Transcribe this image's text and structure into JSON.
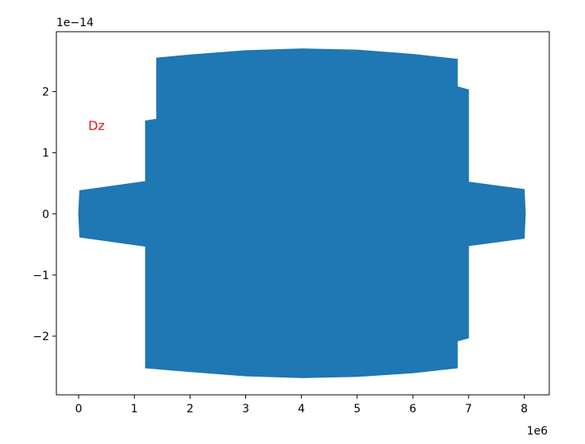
{
  "chart_data": {
    "type": "area",
    "title": "",
    "xlabel": "",
    "ylabel": "",
    "x_offset_label": "1e6",
    "y_offset_label": "1e−14",
    "xlim": [
      -0.4,
      8.45
    ],
    "ylim": [
      -2.96,
      2.98
    ],
    "xticks": [
      0,
      1,
      2,
      3,
      4,
      5,
      6,
      7,
      8
    ],
    "xtick_labels": [
      "0",
      "1",
      "2",
      "3",
      "4",
      "5",
      "6",
      "7",
      "8"
    ],
    "yticks": [
      -2,
      -1,
      0,
      1,
      2
    ],
    "ytick_labels": [
      "−2",
      "−1",
      "0",
      "1",
      "2"
    ],
    "grid": false,
    "annotation": {
      "text": "Dz",
      "x": 0.32,
      "y": 1.45,
      "color": "#e8161b"
    },
    "series": [
      {
        "color": "#1f77b4",
        "upper_envelope": [
          [
            0.0,
            0.0
          ],
          [
            0.02,
            0.38
          ],
          [
            1.2,
            0.53
          ],
          [
            1.2,
            1.52
          ],
          [
            1.4,
            1.55
          ],
          [
            1.4,
            2.55
          ],
          [
            2.0,
            2.6
          ],
          [
            3.0,
            2.67
          ],
          [
            4.0,
            2.7
          ],
          [
            5.0,
            2.68
          ],
          [
            6.0,
            2.61
          ],
          [
            6.8,
            2.53
          ],
          [
            6.8,
            2.08
          ],
          [
            7.0,
            2.03
          ],
          [
            7.0,
            0.52
          ],
          [
            8.0,
            0.4
          ],
          [
            8.02,
            0.0
          ]
        ],
        "lower_envelope": [
          [
            0.0,
            0.0
          ],
          [
            0.02,
            -0.38
          ],
          [
            1.2,
            -0.53
          ],
          [
            1.2,
            -2.52
          ],
          [
            2.0,
            -2.58
          ],
          [
            3.0,
            -2.65
          ],
          [
            4.0,
            -2.68
          ],
          [
            5.0,
            -2.66
          ],
          [
            6.0,
            -2.6
          ],
          [
            6.8,
            -2.52
          ],
          [
            6.8,
            -2.08
          ],
          [
            7.0,
            -2.03
          ],
          [
            7.0,
            -0.52
          ],
          [
            8.0,
            -0.4
          ],
          [
            8.02,
            0.0
          ]
        ]
      }
    ]
  }
}
